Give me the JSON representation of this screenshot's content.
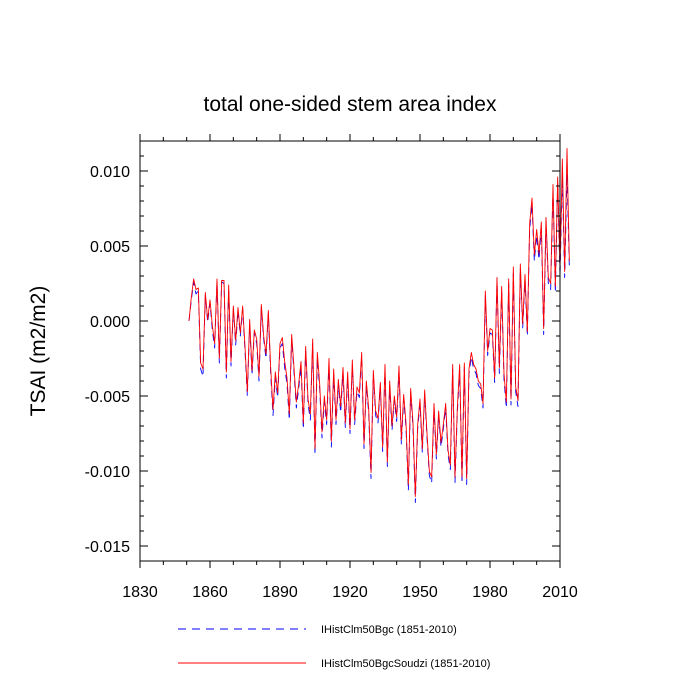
{
  "chart_data": {
    "type": "line",
    "title": "total one-sided stem area index",
    "xlabel": "",
    "ylabel": "TSAI  (m2/m2)",
    "xlim": [
      1830,
      2010
    ],
    "ylim": [
      -0.016,
      0.012
    ],
    "xticks": [
      1830,
      1860,
      1890,
      1920,
      1950,
      1980,
      2010
    ],
    "yticks": [
      -0.015,
      -0.01,
      -0.005,
      0.0,
      0.005,
      0.01
    ],
    "xtick_labels": [
      "1830",
      "1860",
      "1890",
      "1920",
      "1950",
      "1980",
      "2010"
    ],
    "ytick_labels": [
      "-0.015",
      "-0.010",
      "-0.005",
      "0.000",
      "0.005",
      "0.010"
    ],
    "grid": false,
    "legend_position": "bottom",
    "x_start": 1851,
    "series": [
      {
        "name": "IHistClm50Bgc (1851-2010)",
        "color": "#0000ff",
        "dash": "dashed",
        "values": [
          0.0,
          0.0014,
          0.0026,
          0.0018,
          0.002,
          -0.0032,
          -0.0037,
          0.0017,
          -0.0001,
          0.0012,
          -0.0006,
          -0.0018,
          0.0026,
          -0.0028,
          0.0026,
          0.0025,
          -0.0038,
          0.0022,
          -0.003,
          0.0008,
          -0.0016,
          0.0007,
          -0.001,
          0.0008,
          -0.002,
          -0.005,
          -0.0002,
          -0.0036,
          -0.0008,
          -0.0015,
          -0.004,
          0.0009,
          -0.0012,
          -0.0025,
          0.0005,
          -0.0035,
          -0.0063,
          -0.0038,
          -0.0051,
          -0.0018,
          -0.0015,
          -0.0031,
          -0.0042,
          -0.0066,
          -0.0012,
          -0.0034,
          -0.0058,
          -0.0045,
          -0.0031,
          -0.0072,
          -0.002,
          -0.0055,
          -0.0066,
          -0.0015,
          -0.0089,
          -0.0025,
          -0.0045,
          -0.0078,
          -0.0054,
          -0.0069,
          -0.0029,
          -0.0084,
          -0.0036,
          -0.0069,
          -0.0043,
          -0.0061,
          -0.0035,
          -0.0071,
          -0.0038,
          -0.0075,
          -0.0029,
          -0.0069,
          -0.0047,
          -0.0051,
          -0.0024,
          -0.0085,
          -0.0043,
          -0.0061,
          -0.0105,
          -0.0036,
          -0.0063,
          -0.0068,
          -0.0044,
          -0.0087,
          -0.0032,
          -0.0097,
          -0.0043,
          -0.0073,
          -0.0053,
          -0.0067,
          -0.0033,
          -0.0082,
          -0.0052,
          -0.0071,
          -0.0113,
          -0.0048,
          -0.0071,
          -0.0121,
          -0.0072,
          -0.0055,
          -0.0088,
          -0.0049,
          -0.0078,
          -0.0103,
          -0.0108,
          -0.0058,
          -0.0092,
          -0.0063,
          -0.0084,
          -0.0072,
          -0.0058,
          -0.0089,
          -0.0099,
          -0.0032,
          -0.0108,
          -0.0061,
          -0.0033,
          -0.0108,
          -0.0031,
          -0.0109,
          -0.0035,
          -0.0024,
          -0.0032,
          -0.0035,
          -0.0043,
          -0.0045,
          -0.0058,
          0.0016,
          -0.0023,
          -0.0008,
          -0.0009,
          -0.0041,
          0.0026,
          -0.0035,
          0.0019,
          -0.0039,
          -0.0058,
          0.0025,
          -0.0056,
          0.0032,
          -0.0047,
          -0.0057,
          0.0035,
          -0.0005,
          0.0028,
          -0.001,
          0.0061,
          0.0078,
          0.004,
          0.0057,
          0.0041,
          0.0062,
          -0.0009,
          0.0065,
          0.0025,
          0.0021,
          0.0087,
          0.0019,
          0.0092,
          0.003,
          0.0096,
          0.0029,
          0.0098,
          0.0036
        ]
      },
      {
        "name": "IHistClm50BgcSoudzi (1851-2010)",
        "color": "#ff0000",
        "dash": "solid",
        "values": [
          0.0,
          0.0016,
          0.0028,
          0.0021,
          0.0022,
          -0.0028,
          -0.0032,
          0.0019,
          0.0001,
          0.0014,
          -0.0003,
          -0.0015,
          0.0028,
          -0.0025,
          0.0027,
          0.0027,
          -0.0034,
          0.0024,
          -0.0027,
          0.001,
          -0.0013,
          0.0009,
          -0.0008,
          0.001,
          -0.0017,
          -0.0047,
          0.0001,
          -0.0033,
          -0.0006,
          -0.0012,
          -0.0037,
          0.0011,
          -0.001,
          -0.0022,
          0.0007,
          -0.0031,
          -0.0059,
          -0.0034,
          -0.0048,
          -0.0015,
          -0.0011,
          -0.0027,
          -0.0038,
          -0.0062,
          -0.0009,
          -0.0031,
          -0.0054,
          -0.0042,
          -0.0027,
          -0.0068,
          -0.0017,
          -0.0052,
          -0.0062,
          -0.0012,
          -0.0085,
          -0.0021,
          -0.0042,
          -0.0074,
          -0.005,
          -0.0066,
          -0.0025,
          -0.008,
          -0.0032,
          -0.0066,
          -0.0039,
          -0.0057,
          -0.0031,
          -0.0068,
          -0.0034,
          -0.0072,
          -0.0026,
          -0.0066,
          -0.0044,
          -0.0048,
          -0.0021,
          -0.0082,
          -0.004,
          -0.0058,
          -0.0101,
          -0.0033,
          -0.006,
          -0.0065,
          -0.0041,
          -0.0084,
          -0.0029,
          -0.0094,
          -0.004,
          -0.007,
          -0.005,
          -0.0064,
          -0.003,
          -0.0079,
          -0.0049,
          -0.0068,
          -0.0109,
          -0.0045,
          -0.0068,
          -0.0117,
          -0.0069,
          -0.0052,
          -0.0085,
          -0.0046,
          -0.0075,
          -0.01,
          -0.0104,
          -0.0055,
          -0.0089,
          -0.006,
          -0.0081,
          -0.0069,
          -0.0055,
          -0.0086,
          -0.0096,
          -0.0029,
          -0.0104,
          -0.0058,
          -0.0029,
          -0.0104,
          -0.0028,
          -0.0105,
          -0.0032,
          -0.0021,
          -0.0029,
          -0.0032,
          -0.004,
          -0.0042,
          -0.0055,
          0.002,
          -0.002,
          -0.0005,
          -0.0006,
          -0.0038,
          0.0029,
          -0.0031,
          0.0023,
          -0.0035,
          -0.0054,
          0.0028,
          -0.0052,
          0.0036,
          -0.0044,
          -0.0053,
          0.0038,
          -0.0002,
          0.0031,
          -0.0007,
          0.0065,
          0.0082,
          0.0044,
          0.0061,
          0.0045,
          0.0066,
          -0.0005,
          0.0069,
          0.0029,
          0.0025,
          0.0091,
          0.0023,
          0.0096,
          0.0034,
          0.0108,
          0.0033,
          0.0115,
          0.004
        ]
      }
    ]
  }
}
